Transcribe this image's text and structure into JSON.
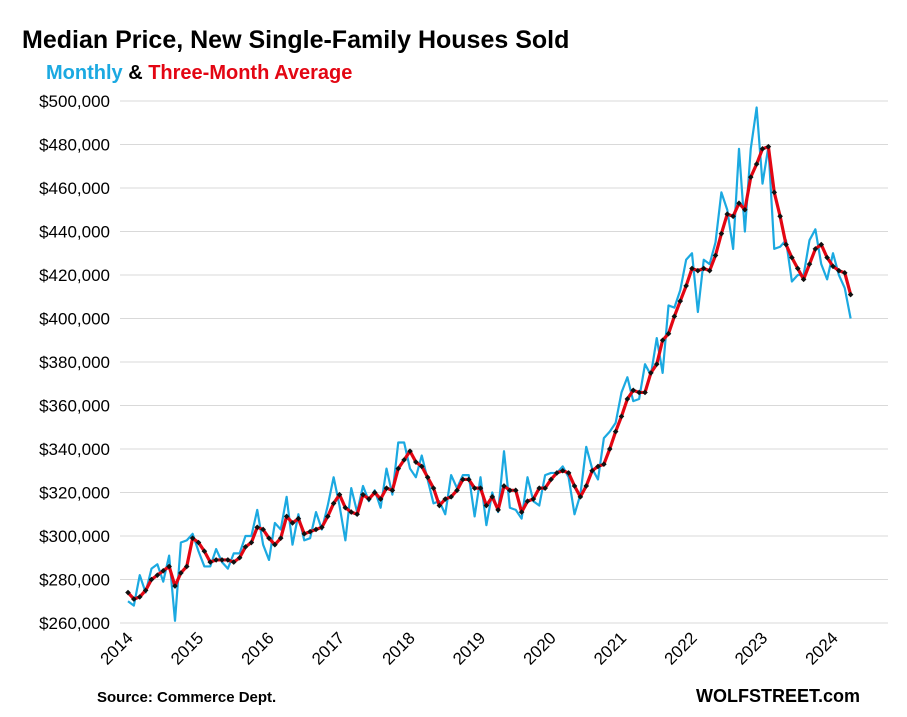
{
  "chart_data": {
    "type": "line",
    "title": "Median Price, New Single-Family Houses Sold",
    "subtitle_parts": {
      "monthly": "Monthly",
      "amp": " & ",
      "avg": "Three-Month Average"
    },
    "source": "Source: Commerce Dept.",
    "brand": "WOLFSTREET.com",
    "colors": {
      "monthly": "#1BA9E1",
      "average_line": "#E30613",
      "average_marker": "#111111",
      "grid": "#D9D9D9"
    },
    "ylim": [
      260000,
      500000
    ],
    "y_ticks": [
      260000,
      280000,
      300000,
      320000,
      340000,
      360000,
      380000,
      400000,
      420000,
      440000,
      460000,
      480000,
      500000
    ],
    "y_tick_labels": [
      "$260,000",
      "$280,000",
      "$300,000",
      "$320,000",
      "$340,000",
      "$360,000",
      "$380,000",
      "$400,000",
      "$420,000",
      "$440,000",
      "$460,000",
      "$480,000",
      "$500,000"
    ],
    "x_tick_labels": [
      "2014",
      "2015",
      "2016",
      "2017",
      "2018",
      "2019",
      "2020",
      "2021",
      "2022",
      "2023",
      "2024"
    ],
    "grid": true,
    "start": "2014-01",
    "frequency": "monthly",
    "series": [
      {
        "key": "monthly",
        "values": [
          270000,
          268000,
          282000,
          274000,
          285000,
          287000,
          279000,
          291000,
          261000,
          297000,
          298000,
          301000,
          293000,
          286000,
          286000,
          294000,
          288000,
          285000,
          292000,
          292000,
          300000,
          300000,
          312000,
          296000,
          289000,
          306000,
          303000,
          318000,
          296000,
          310000,
          298000,
          299000,
          311000,
          303000,
          314000,
          327000,
          314000,
          298000,
          322000,
          311000,
          323000,
          316000,
          321000,
          313000,
          331000,
          319000,
          343000,
          343000,
          331000,
          327000,
          337000,
          326000,
          315000,
          316000,
          310000,
          328000,
          322000,
          328000,
          328000,
          309000,
          327000,
          305000,
          320000,
          311000,
          339000,
          313000,
          312000,
          308000,
          327000,
          316000,
          314000,
          328000,
          329000,
          329000,
          332000,
          327000,
          310000,
          319000,
          341000,
          331000,
          326000,
          345000,
          348000,
          352000,
          366000,
          373000,
          362000,
          363000,
          379000,
          374000,
          391000,
          375000,
          406000,
          405000,
          413000,
          427000,
          430000,
          403000,
          427000,
          425000,
          435000,
          458000,
          450000,
          432000,
          478000,
          440000,
          478000,
          497000,
          462000,
          479000,
          432000,
          433000,
          436000,
          417000,
          420000,
          420000,
          436000,
          441000,
          425000,
          418000,
          430000,
          420000,
          414000,
          400000
        ],
        "avg_values": [
          274000,
          271000,
          272000,
          275000,
          280000,
          282000,
          284000,
          286000,
          277000,
          283000,
          286000,
          299000,
          297000,
          293000,
          288000,
          289000,
          289000,
          289000,
          288000,
          290000,
          295000,
          297000,
          304000,
          303000,
          299000,
          296000,
          299000,
          309000,
          306000,
          308000,
          301000,
          302000,
          303000,
          304000,
          309000,
          315000,
          319000,
          313000,
          311000,
          310000,
          319000,
          317000,
          320000,
          317000,
          322000,
          321000,
          331000,
          335000,
          339000,
          334000,
          332000,
          327000,
          322000,
          314000,
          317000,
          318000,
          321000,
          326000,
          326000,
          322000,
          322000,
          314000,
          318000,
          312000,
          323000,
          321000,
          321000,
          311000,
          316000,
          317000,
          322000,
          322000,
          326000,
          329000,
          330000,
          329000,
          323000,
          318000,
          323000,
          330000,
          332000,
          333000,
          340000,
          348000,
          355000,
          363000,
          367000,
          366000,
          366000,
          375000,
          379000,
          390000,
          393000,
          401000,
          408000,
          415000,
          423000,
          422000,
          423000,
          422000,
          429000,
          439000,
          448000,
          447000,
          453000,
          450000,
          465000,
          471000,
          478000,
          479000,
          458000,
          447000,
          434000,
          428000,
          423000,
          418000,
          425000,
          432000,
          434000,
          428000,
          424000,
          422000,
          421000,
          411000
        ]
      }
    ]
  }
}
